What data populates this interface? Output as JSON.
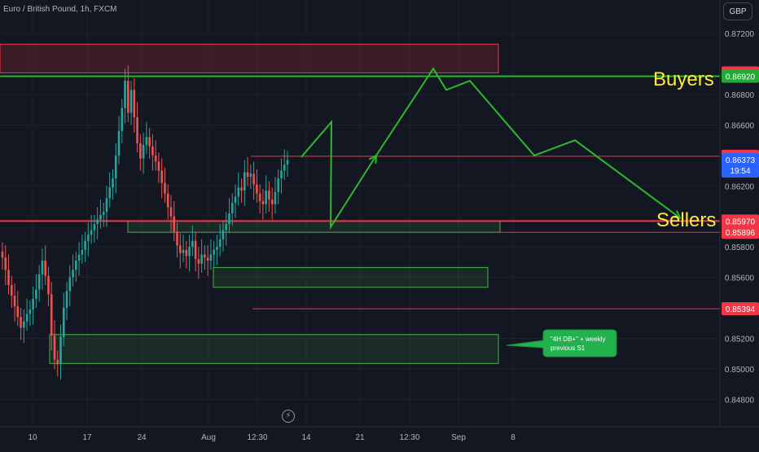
{
  "header": {
    "title": "Euro / British Pound, 1h, FXCM",
    "currency": "GBP"
  },
  "annotations": {
    "buyers": "Buyers",
    "sellers": "Sellers",
    "callout_line1": "\"4H DB+\" + weekly",
    "callout_line2": "previous S1"
  },
  "colors": {
    "background": "#131722",
    "grid": "#1e222d",
    "axis_text": "#b2b5be",
    "bull": "#26a69a",
    "bear": "#ef5350",
    "level_red": "#f23645",
    "zone_green": "#4caf50",
    "path_green": "#2db82d",
    "label_yellow": "#ffeb3b",
    "last_price": "#2962ff"
  },
  "chart_data": {
    "type": "candlestick",
    "y_axis": {
      "ticks": [
        0.872,
        0.868,
        0.866,
        0.862,
        0.858,
        0.856,
        0.852,
        0.85,
        0.848
      ],
      "tick_labels": [
        "0.87200",
        "0.86800",
        "0.86600",
        "0.86200",
        "0.85800",
        "0.85600",
        "0.85200",
        "0.85000",
        "0.84800"
      ],
      "range": [
        0.8462,
        0.8742
      ]
    },
    "x_axis": {
      "ticks": [
        "10",
        "17",
        "24",
        "Aug",
        "12:30",
        "14",
        "21",
        "12:30",
        "Sep",
        "8"
      ]
    },
    "price_labels": [
      {
        "value": "0.86942",
        "kind": "red"
      },
      {
        "value": "0.86920",
        "kind": "green"
      },
      {
        "value": "0.86395",
        "kind": "red"
      },
      {
        "value": "0.86373",
        "kind": "blue",
        "sub": "19:54"
      },
      {
        "value": "0.85970",
        "kind": "red"
      },
      {
        "value": "0.85896",
        "kind": "red"
      },
      {
        "value": "0.85394",
        "kind": "red"
      }
    ],
    "horizontal_lines": [
      {
        "price": 0.8692,
        "color": "green"
      },
      {
        "price": 0.86395,
        "color": "red"
      },
      {
        "price": 0.8597,
        "color": "red"
      },
      {
        "price": 0.85896,
        "color": "red"
      },
      {
        "price": 0.85394,
        "color": "red"
      }
    ],
    "zones": [
      {
        "from": 0.86942,
        "to": 0.8713,
        "color": "red"
      },
      {
        "from": 0.85896,
        "to": 0.8597,
        "color": "green"
      },
      {
        "from": 0.85535,
        "to": 0.85665,
        "color": "green"
      },
      {
        "from": 0.85035,
        "to": 0.85225,
        "color": "green"
      }
    ],
    "projection_path": [
      0.8639,
      0.8662,
      0.8593,
      0.864,
      0.8697,
      0.8683,
      0.8689,
      0.864,
      0.865,
      0.8599
    ],
    "candles_close": [
      0.8573,
      0.8565,
      0.8555,
      0.8548,
      0.8541,
      0.8534,
      0.8527,
      0.8531,
      0.8536,
      0.8539,
      0.8546,
      0.8552,
      0.8562,
      0.8571,
      0.8561,
      0.8549,
      0.8522,
      0.8506,
      0.8503,
      0.8521,
      0.854,
      0.8551,
      0.856,
      0.8565,
      0.8571,
      0.8575,
      0.8578,
      0.8584,
      0.8588,
      0.8591,
      0.8595,
      0.8598,
      0.8601,
      0.8603,
      0.8612,
      0.8619,
      0.8625,
      0.864,
      0.8656,
      0.8671,
      0.8689,
      0.8668,
      0.8683,
      0.8665,
      0.8648,
      0.8638,
      0.8647,
      0.8652,
      0.8646,
      0.864,
      0.8636,
      0.863,
      0.8622,
      0.8615,
      0.8606,
      0.86,
      0.859,
      0.8581,
      0.8576,
      0.8578,
      0.8574,
      0.858,
      0.8584,
      0.8572,
      0.8569,
      0.8575,
      0.8573,
      0.8571,
      0.8575,
      0.8578,
      0.858,
      0.8585,
      0.8591,
      0.8595,
      0.8602,
      0.8609,
      0.8613,
      0.8619,
      0.8617,
      0.8629,
      0.8626,
      0.8628,
      0.8621,
      0.8615,
      0.861,
      0.8608,
      0.8617,
      0.8611,
      0.8608,
      0.8616,
      0.8625,
      0.863,
      0.8634,
      0.8637
    ]
  }
}
